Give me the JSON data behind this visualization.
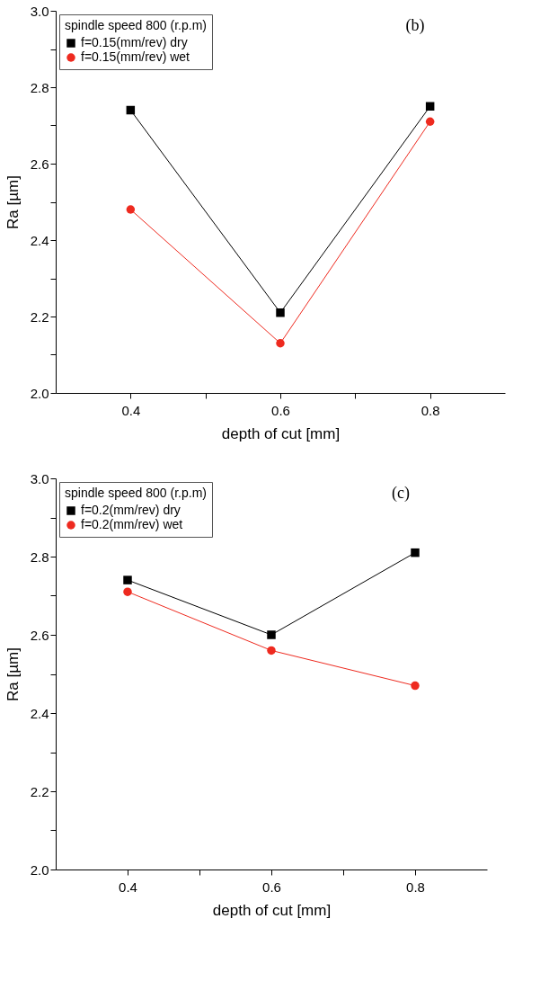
{
  "chart_data": [
    {
      "type": "line",
      "xlabel": "depth of cut [mm]",
      "ylabel": "Ra [µm]",
      "legend_title": "spindle speed 800 (r.p.m)",
      "annotations": [
        "(b)"
      ],
      "x": [
        0.4,
        0.6,
        0.8
      ],
      "series": [
        {
          "name": "f=0.15(mm/rev) dry",
          "color": "#000000",
          "marker": "square",
          "values": [
            2.74,
            2.21,
            2.75
          ]
        },
        {
          "name": "f=0.15(mm/rev) wet",
          "color": "#ee2a1f",
          "marker": "circle",
          "values": [
            2.48,
            2.13,
            2.71
          ]
        }
      ],
      "xlim": [
        0.3,
        0.9
      ],
      "xticks": [
        {
          "value": 0.4,
          "label": "0.4"
        },
        {
          "value": 0.5,
          "label": null
        },
        {
          "value": 0.6,
          "label": "0.6"
        },
        {
          "value": 0.7,
          "label": null
        },
        {
          "value": 0.8,
          "label": "0.8"
        }
      ],
      "ylim": [
        2.0,
        3.0
      ],
      "yticks": [
        {
          "value": 2.0,
          "label": "2.0"
        },
        {
          "value": 2.1,
          "label": null
        },
        {
          "value": 2.2,
          "label": "2.2"
        },
        {
          "value": 2.3,
          "label": null
        },
        {
          "value": 2.4,
          "label": "2.4"
        },
        {
          "value": 2.5,
          "label": null
        },
        {
          "value": 2.6,
          "label": "2.6"
        },
        {
          "value": 2.7,
          "label": null
        },
        {
          "value": 2.8,
          "label": "2.8"
        },
        {
          "value": 2.9,
          "label": null
        },
        {
          "value": 3.0,
          "label": "3.0"
        }
      ],
      "grid": false,
      "legend": "top left",
      "line_style": "solid"
    },
    {
      "type": "line",
      "xlabel": "depth of cut [mm]",
      "ylabel": "Ra [µm]",
      "legend_title": "spindle speed 800 (r.p.m)",
      "annotations": [
        "(c)"
      ],
      "x": [
        0.4,
        0.6,
        0.8
      ],
      "series": [
        {
          "name": "f=0.2(mm/rev) dry",
          "color": "#000000",
          "marker": "square",
          "values": [
            2.74,
            2.6,
            2.81
          ]
        },
        {
          "name": "f=0.2(mm/rev) wet",
          "color": "#ee2a1f",
          "marker": "circle",
          "values": [
            2.71,
            2.56,
            2.47
          ]
        }
      ],
      "xlim": [
        0.3,
        0.9
      ],
      "xticks": [
        {
          "value": 0.4,
          "label": "0.4"
        },
        {
          "value": 0.5,
          "label": null
        },
        {
          "value": 0.6,
          "label": "0.6"
        },
        {
          "value": 0.7,
          "label": null
        },
        {
          "value": 0.8,
          "label": "0.8"
        }
      ],
      "ylim": [
        2.0,
        3.0
      ],
      "yticks": [
        {
          "value": 2.0,
          "label": "2.0"
        },
        {
          "value": 2.1,
          "label": null
        },
        {
          "value": 2.2,
          "label": "2.2"
        },
        {
          "value": 2.3,
          "label": null
        },
        {
          "value": 2.4,
          "label": "2.4"
        },
        {
          "value": 2.5,
          "label": null
        },
        {
          "value": 2.6,
          "label": "2.6"
        },
        {
          "value": 2.7,
          "label": null
        },
        {
          "value": 2.8,
          "label": "2.8"
        },
        {
          "value": 2.9,
          "label": null
        },
        {
          "value": 3.0,
          "label": "3.0"
        }
      ],
      "grid": false,
      "legend": "top left",
      "line_style": "solid"
    }
  ]
}
